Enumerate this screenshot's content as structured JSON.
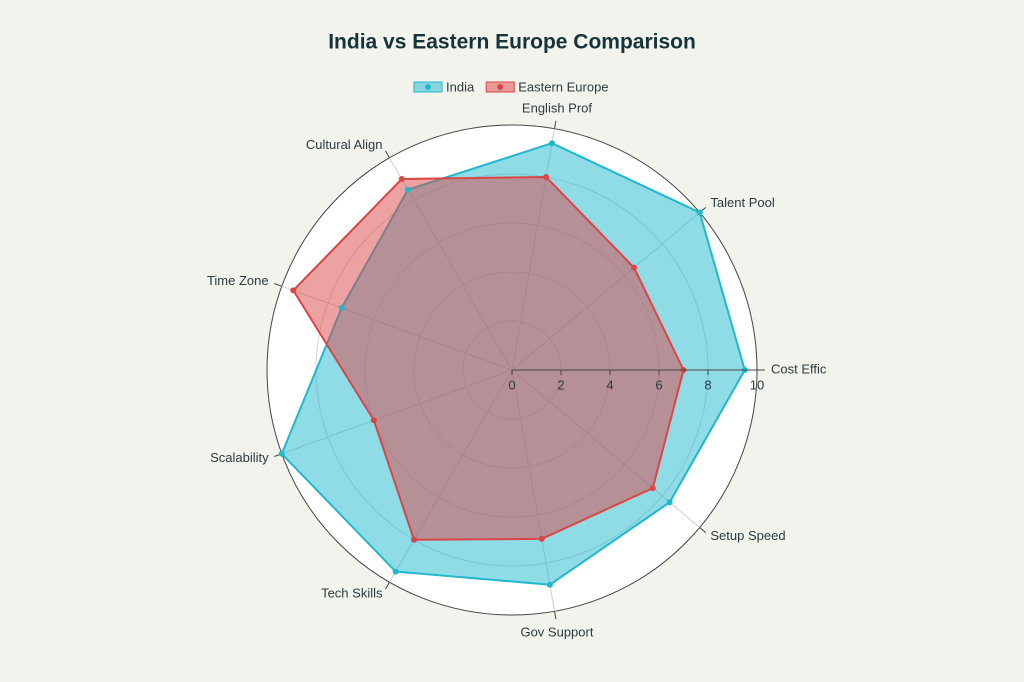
{
  "chart_data": {
    "type": "radar",
    "title": "India vs Eastern Europe Comparison",
    "categories": [
      "Cost Effic",
      "Talent Pool",
      "English Prof",
      "Cultural Align",
      "Time Zone",
      "Scalability",
      "Tech Skills",
      "Gov Support",
      "Setup Speed"
    ],
    "series": [
      {
        "name": "India",
        "color": "#1fb8cd",
        "values": [
          9.5,
          10,
          9.4,
          8.5,
          7.4,
          10,
          9.5,
          8.9,
          8.4
        ]
      },
      {
        "name": "Eastern Europe",
        "color": "#db4545",
        "values": [
          7,
          6.5,
          8,
          9,
          9.5,
          6,
          8,
          7,
          7.5
        ]
      }
    ],
    "rlim": [
      0,
      10
    ],
    "rticks": [
      0,
      2,
      4,
      6,
      8,
      10
    ],
    "grid": true,
    "legend": "top"
  }
}
